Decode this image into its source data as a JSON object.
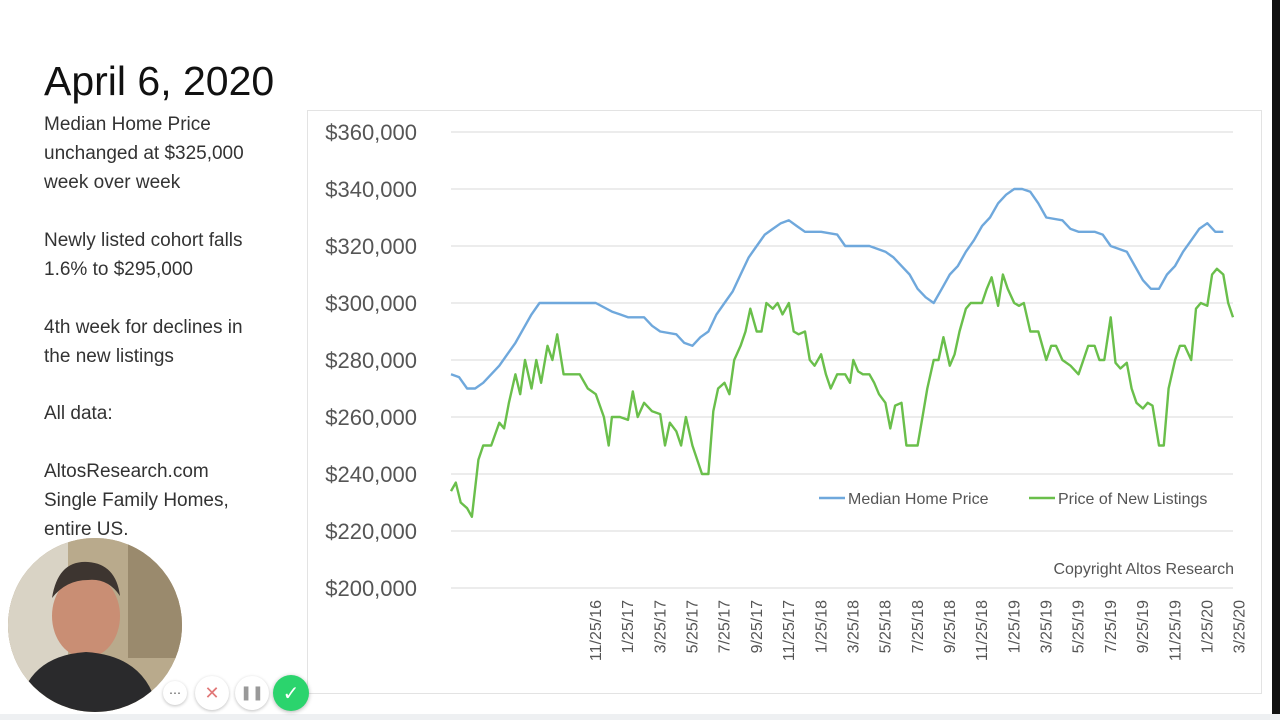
{
  "slide": {
    "title": "April 6, 2020",
    "notes": [
      "Median Home Price\nunchanged at $325,000\nweek over week",
      "Newly listed cohort falls\n1.6% to $295,000",
      "4th week for declines in\nthe new listings",
      "All data:",
      "AltosResearch.com\nSingle Family Homes,\nentire US."
    ]
  },
  "recording_controls": {
    "more_label": "⋯",
    "cancel_label": "✕",
    "pause_label": "❚❚",
    "done_label": "✓"
  },
  "chart_data": {
    "type": "line",
    "title": "",
    "xlabel": "",
    "ylabel": "",
    "ylim": [
      200000,
      360000
    ],
    "y_ticks": [
      200000,
      220000,
      240000,
      260000,
      280000,
      300000,
      320000,
      340000,
      360000
    ],
    "y_tick_labels": [
      "$200,000",
      "$220,000",
      "$240,000",
      "$260,000",
      "$280,000",
      "$300,000",
      "$320,000",
      "$340,000",
      "$360,000"
    ],
    "x_tick_labels": [
      "11/25/16",
      "1/25/17",
      "3/25/17",
      "5/25/17",
      "7/25/17",
      "9/25/17",
      "11/25/17",
      "1/25/18",
      "3/25/18",
      "5/25/18",
      "7/25/18",
      "9/25/18",
      "11/25/18",
      "1/25/19",
      "3/25/19",
      "5/25/19",
      "7/25/19",
      "9/25/19",
      "11/25/19",
      "1/25/20",
      "3/25/20"
    ],
    "x_range_months": [
      0,
      40.3
    ],
    "grid": "horizontal",
    "legend": "bottom-right",
    "annotation": "Copyright Altos Research",
    "series": [
      {
        "name": "Median Home Price",
        "color": "#6fa8dc",
        "points": [
          [
            0,
            275000
          ],
          [
            0.5,
            274000
          ],
          [
            1,
            270000
          ],
          [
            1.5,
            270000
          ],
          [
            2,
            272000
          ],
          [
            2.5,
            275000
          ],
          [
            3,
            278000
          ],
          [
            3.5,
            282000
          ],
          [
            4,
            286000
          ],
          [
            4.5,
            291000
          ],
          [
            5,
            296000
          ],
          [
            5.5,
            300000
          ],
          [
            6,
            300000
          ],
          [
            7,
            300000
          ],
          [
            8,
            300000
          ],
          [
            9,
            300000
          ],
          [
            10,
            297000
          ],
          [
            10.5,
            296000
          ],
          [
            11,
            295000
          ],
          [
            12,
            295000
          ],
          [
            12.5,
            292000
          ],
          [
            13,
            290000
          ],
          [
            14,
            289000
          ],
          [
            14.5,
            286000
          ],
          [
            15,
            285000
          ],
          [
            15.5,
            288000
          ],
          [
            16,
            290000
          ],
          [
            16.5,
            296000
          ],
          [
            17,
            300000
          ],
          [
            17.5,
            304000
          ],
          [
            18,
            310000
          ],
          [
            18.5,
            316000
          ],
          [
            19,
            320000
          ],
          [
            19.5,
            324000
          ],
          [
            20,
            326000
          ],
          [
            20.5,
            328000
          ],
          [
            21,
            329000
          ],
          [
            21.5,
            327000
          ],
          [
            22,
            325000
          ],
          [
            23,
            325000
          ],
          [
            24,
            324000
          ],
          [
            24.5,
            320000
          ],
          [
            25,
            320000
          ],
          [
            26,
            320000
          ],
          [
            27,
            318000
          ],
          [
            27.5,
            316000
          ],
          [
            28,
            313000
          ],
          [
            28.5,
            310000
          ],
          [
            29,
            305000
          ],
          [
            29.5,
            302000
          ],
          [
            30,
            300000
          ],
          [
            30.5,
            305000
          ],
          [
            31,
            310000
          ],
          [
            31.5,
            313000
          ],
          [
            32,
            318000
          ],
          [
            32.5,
            322000
          ],
          [
            33,
            327000
          ],
          [
            33.5,
            330000
          ],
          [
            34,
            335000
          ],
          [
            34.5,
            338000
          ],
          [
            35,
            340000
          ],
          [
            35.5,
            340000
          ],
          [
            36,
            339000
          ],
          [
            36.5,
            335000
          ],
          [
            37,
            330000
          ],
          [
            38,
            329000
          ],
          [
            38.5,
            326000
          ],
          [
            39,
            325000
          ],
          [
            40,
            325000
          ],
          [
            40.5,
            324000
          ],
          [
            41,
            320000
          ],
          [
            42,
            318000
          ],
          [
            42.5,
            313000
          ],
          [
            43,
            308000
          ],
          [
            43.5,
            305000
          ],
          [
            44,
            305000
          ],
          [
            44.5,
            310000
          ],
          [
            45,
            313000
          ],
          [
            45.5,
            318000
          ],
          [
            46,
            322000
          ],
          [
            46.5,
            326000
          ],
          [
            47,
            328000
          ],
          [
            47.5,
            325000
          ],
          [
            48,
            325000
          ]
        ]
      },
      {
        "name": "Price of New Listings",
        "color": "#6abf4b",
        "points": [
          [
            0,
            234000
          ],
          [
            0.3,
            237000
          ],
          [
            0.6,
            230000
          ],
          [
            1,
            228000
          ],
          [
            1.3,
            225000
          ],
          [
            1.7,
            245000
          ],
          [
            2,
            250000
          ],
          [
            2.5,
            250000
          ],
          [
            3,
            258000
          ],
          [
            3.3,
            256000
          ],
          [
            3.6,
            265000
          ],
          [
            4,
            275000
          ],
          [
            4.3,
            268000
          ],
          [
            4.6,
            280000
          ],
          [
            5,
            270000
          ],
          [
            5.3,
            280000
          ],
          [
            5.6,
            272000
          ],
          [
            6,
            285000
          ],
          [
            6.3,
            280000
          ],
          [
            6.6,
            289000
          ],
          [
            7,
            275000
          ],
          [
            8,
            275000
          ],
          [
            8.5,
            270000
          ],
          [
            9,
            268000
          ],
          [
            9.5,
            260000
          ],
          [
            9.8,
            250000
          ],
          [
            10,
            260000
          ],
          [
            10.5,
            260000
          ],
          [
            11,
            259000
          ],
          [
            11.3,
            269000
          ],
          [
            11.6,
            260000
          ],
          [
            12,
            265000
          ],
          [
            12.5,
            262000
          ],
          [
            13,
            261000
          ],
          [
            13.3,
            250000
          ],
          [
            13.6,
            258000
          ],
          [
            14,
            255000
          ],
          [
            14.3,
            250000
          ],
          [
            14.6,
            260000
          ],
          [
            15,
            250000
          ],
          [
            15.3,
            245000
          ],
          [
            15.6,
            240000
          ],
          [
            16,
            240000
          ],
          [
            16.3,
            262000
          ],
          [
            16.6,
            270000
          ],
          [
            17,
            272000
          ],
          [
            17.3,
            268000
          ],
          [
            17.6,
            280000
          ],
          [
            18,
            285000
          ],
          [
            18.3,
            290000
          ],
          [
            18.6,
            298000
          ],
          [
            19,
            290000
          ],
          [
            19.3,
            290000
          ],
          [
            19.6,
            300000
          ],
          [
            20,
            298000
          ],
          [
            20.3,
            300000
          ],
          [
            20.6,
            296000
          ],
          [
            21,
            300000
          ],
          [
            21.3,
            290000
          ],
          [
            21.6,
            289000
          ],
          [
            22,
            290000
          ],
          [
            22.3,
            280000
          ],
          [
            22.6,
            278000
          ],
          [
            23,
            282000
          ],
          [
            23.3,
            275000
          ],
          [
            23.6,
            270000
          ],
          [
            24,
            275000
          ],
          [
            24.5,
            275000
          ],
          [
            24.8,
            272000
          ],
          [
            25,
            280000
          ],
          [
            25.3,
            276000
          ],
          [
            25.6,
            275000
          ],
          [
            26,
            275000
          ],
          [
            26.3,
            272000
          ],
          [
            26.6,
            268000
          ],
          [
            27,
            265000
          ],
          [
            27.3,
            256000
          ],
          [
            27.6,
            264000
          ],
          [
            28,
            265000
          ],
          [
            28.3,
            250000
          ],
          [
            28.6,
            250000
          ],
          [
            29,
            250000
          ],
          [
            29.3,
            260000
          ],
          [
            29.6,
            270000
          ],
          [
            30,
            280000
          ],
          [
            30.3,
            280000
          ],
          [
            30.6,
            288000
          ],
          [
            31,
            278000
          ],
          [
            31.3,
            282000
          ],
          [
            31.6,
            290000
          ],
          [
            32,
            298000
          ],
          [
            32.3,
            300000
          ],
          [
            32.6,
            300000
          ],
          [
            33,
            300000
          ],
          [
            33.3,
            305000
          ],
          [
            33.6,
            309000
          ],
          [
            34,
            299000
          ],
          [
            34.3,
            310000
          ],
          [
            34.6,
            305000
          ],
          [
            35,
            300000
          ],
          [
            35.3,
            299000
          ],
          [
            35.6,
            300000
          ],
          [
            36,
            290000
          ],
          [
            36.5,
            290000
          ],
          [
            37,
            280000
          ],
          [
            37.3,
            285000
          ],
          [
            37.6,
            285000
          ],
          [
            38,
            280000
          ],
          [
            38.5,
            278000
          ],
          [
            39,
            275000
          ],
          [
            39.3,
            280000
          ],
          [
            39.6,
            285000
          ],
          [
            40,
            285000
          ],
          [
            40.3,
            280000
          ],
          [
            40.6,
            280000
          ],
          [
            41,
            295000
          ],
          [
            41.3,
            279000
          ],
          [
            41.6,
            277000
          ],
          [
            42,
            279000
          ],
          [
            42.3,
            270000
          ],
          [
            42.6,
            265000
          ],
          [
            43,
            263000
          ],
          [
            43.3,
            265000
          ],
          [
            43.6,
            264000
          ],
          [
            44,
            250000
          ],
          [
            44.3,
            250000
          ],
          [
            44.6,
            270000
          ],
          [
            45,
            280000
          ],
          [
            45.3,
            285000
          ],
          [
            45.6,
            285000
          ],
          [
            46,
            280000
          ],
          [
            46.3,
            298000
          ],
          [
            46.6,
            300000
          ],
          [
            47,
            299000
          ],
          [
            47.3,
            310000
          ],
          [
            47.6,
            312000
          ],
          [
            48,
            310000
          ],
          [
            48.3,
            300000
          ],
          [
            48.6,
            295000
          ]
        ]
      }
    ]
  }
}
